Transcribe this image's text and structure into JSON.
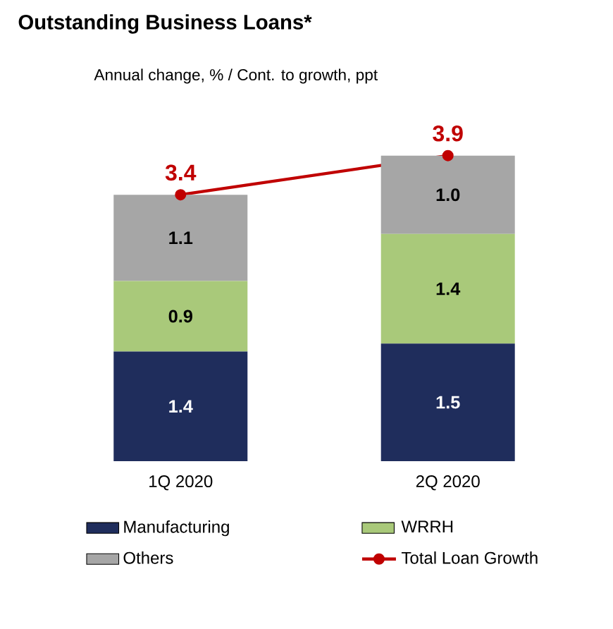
{
  "chart_data": {
    "type": "bar",
    "title": "Outstanding Business Loans*",
    "subtitle": "Annual change, %  / Cont. to growth, ppt",
    "categories": [
      "1Q 2020",
      "2Q 2020"
    ],
    "stacked": true,
    "data_labels": true,
    "legend": "bottom",
    "marker": "circle",
    "series": [
      {
        "name": "Manufacturing",
        "color": "#1f2d5c",
        "values": [
          1.4,
          1.5
        ]
      },
      {
        "name": "WRRH",
        "color": "#a9c97a",
        "values": [
          0.9,
          1.4
        ]
      },
      {
        "name": "Others",
        "color": "#a6a6a6",
        "values": [
          1.1,
          1.0
        ],
        "value_labels": [
          "1.1",
          "1.0"
        ]
      },
      {
        "name": "Total Loan Growth",
        "type": "line",
        "color": "#c00000",
        "values": [
          3.4,
          3.9
        ]
      }
    ]
  }
}
